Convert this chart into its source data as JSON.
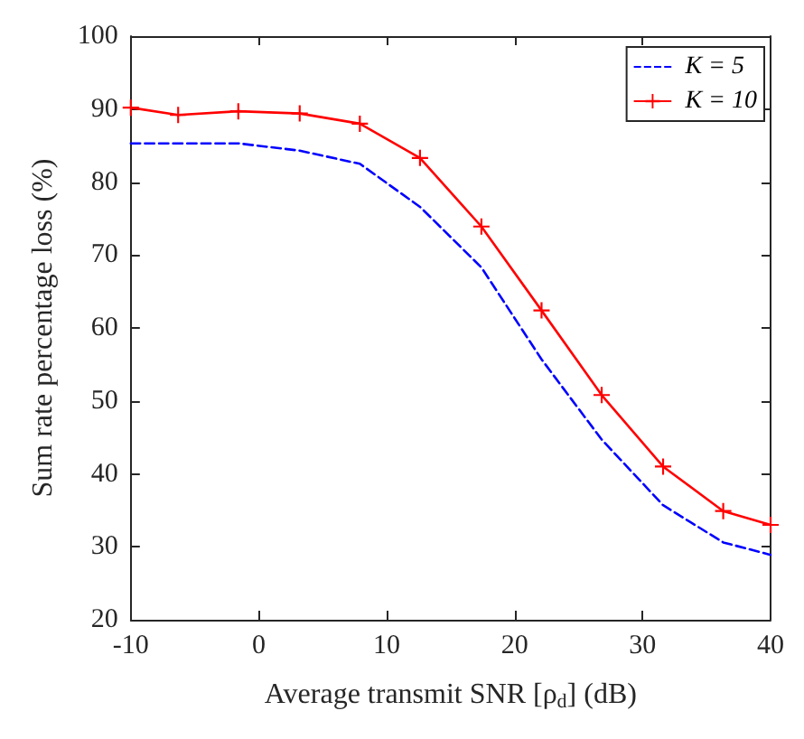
{
  "chart_data": {
    "type": "line",
    "xlabel": "Average transmit SNR [ρ$_{d}$] (dB)",
    "ylabel": "Sum rate percentage loss (%)",
    "xlim": [
      -10,
      40
    ],
    "xticks": [
      -10,
      0,
      10,
      20,
      30,
      40
    ],
    "ylim": [
      20,
      100
    ],
    "yticks": [
      20,
      30,
      40,
      50,
      60,
      70,
      80,
      90,
      100
    ],
    "grid": false,
    "legend": "top right",
    "series": [
      {
        "name": "K = 5",
        "color": "#0000ff",
        "line_style": "dashed",
        "marker": "none",
        "x": [
          -10,
          -6.3,
          -1.6,
          3.2,
          7.9,
          12.6,
          17.4,
          22.1,
          26.8,
          31.6,
          36.3,
          40
        ],
        "values": [
          85.3,
          85.3,
          85.3,
          84.3,
          82.5,
          76.6,
          68.3,
          55.7,
          44.7,
          35.7,
          30.6,
          28.9
        ]
      },
      {
        "name": "K = 10",
        "color": "#ff0000",
        "line_style": "solid",
        "marker": "cross",
        "x": [
          -10,
          -6.3,
          -1.6,
          3.2,
          7.9,
          12.6,
          17.4,
          22.1,
          26.8,
          31.6,
          36.3,
          40
        ],
        "values": [
          90.2,
          89.2,
          89.7,
          89.4,
          88.0,
          83.3,
          73.9,
          62.4,
          50.8,
          41.0,
          34.9,
          33.0
        ]
      }
    ]
  }
}
